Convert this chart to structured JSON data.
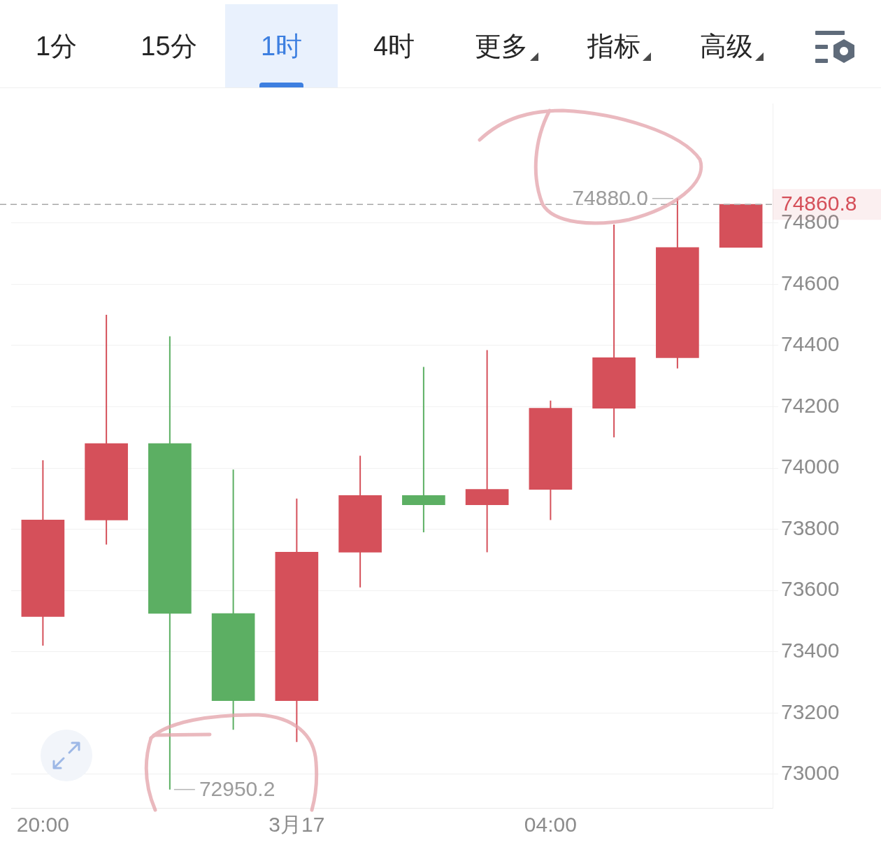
{
  "chart_data": {
    "type": "candlestick",
    "categories": [
      "20:00",
      null,
      null,
      null,
      "3月17",
      null,
      null,
      null,
      "04:00",
      null,
      null,
      null
    ],
    "ohlc": [
      [
        73515,
        74025,
        73420,
        73830
      ],
      [
        73830,
        74500,
        73750,
        74080
      ],
      [
        74080,
        74430,
        72950.2,
        73525
      ],
      [
        73525,
        73995,
        73145,
        73240
      ],
      [
        73240,
        73900,
        73105,
        73725
      ],
      [
        73725,
        74040,
        73610,
        73910
      ],
      [
        73910,
        74330,
        73790,
        73880
      ],
      [
        73880,
        74385,
        73725,
        73930
      ],
      [
        73930,
        74220,
        73830,
        74195
      ],
      [
        74195,
        74795,
        74100,
        74360
      ],
      [
        74360,
        74880,
        74325,
        74720
      ],
      [
        74720,
        74860.8,
        74720,
        74860.8
      ]
    ],
    "colors": [
      "#d5505a",
      "#d5505a",
      "#5caf63",
      "#5caf63",
      "#d5505a",
      "#d5505a",
      "#5caf63",
      "#d5505a",
      "#d5505a",
      "#d5505a",
      "#d5505a",
      "#d5505a"
    ],
    "ylim": [
      72890,
      75190
    ],
    "yticks": [
      73000,
      73200,
      73400,
      73600,
      73800,
      74000,
      74200,
      74400,
      74600,
      74800
    ],
    "grid": "y",
    "ref_lines": [
      {
        "axis": "y",
        "value": 74860.8,
        "label": "74860.8",
        "color": "#a8a8a8",
        "line_style": "dashed"
      }
    ],
    "annotations": [
      "1分",
      "15分",
      "1时",
      "4时",
      "更多",
      "指标",
      "高级",
      "74880.0",
      "72950.2"
    ]
  }
}
